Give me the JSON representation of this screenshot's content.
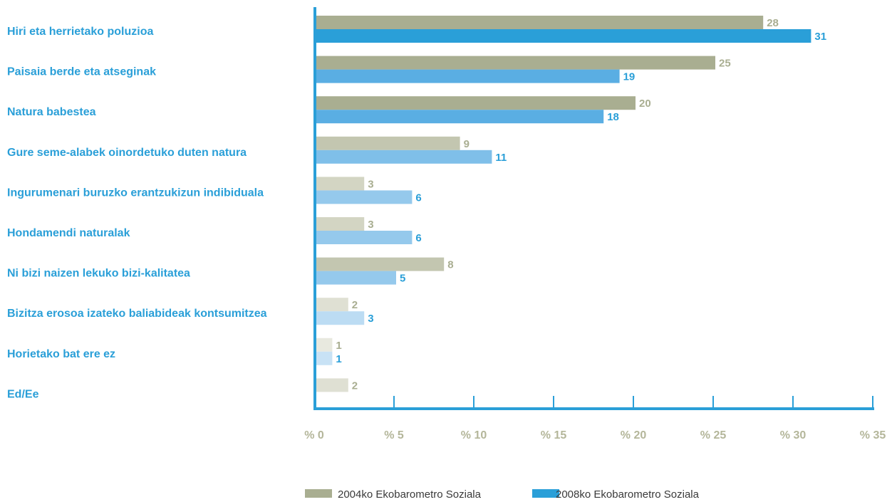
{
  "chart_data": {
    "type": "bar",
    "orientation": "horizontal",
    "categories": [
      "Hiri eta herrietako poluzioa",
      "Paisaia berde eta atseginak",
      "Natura babestea",
      "Gure seme-alabek oinordetuko duten natura",
      "Ingurumenari buruzko erantzukizun indibiduala",
      "Hondamendi naturalak",
      "Ni bizi naizen lekuko bizi-kalitatea",
      "Bizitza erosoa izateko baliabideak kontsumitzea",
      "Horietako bat ere ez",
      "Ed/Ee"
    ],
    "series": [
      {
        "name": "2004ko Ekobarometro Soziala",
        "values": [
          28,
          25,
          20,
          9,
          3,
          3,
          8,
          2,
          1,
          2
        ],
        "color": "#a9ae91",
        "label_color": "#a9ae91"
      },
      {
        "name": "2008ko Ekobarometro Soziala",
        "values": [
          31,
          19,
          18,
          11,
          6,
          6,
          5,
          3,
          1,
          null
        ],
        "color": "#2a9fd8",
        "label_color": "#2a9fd8"
      }
    ],
    "bar_shades_2004": [
      "#a9ae91",
      "#a9ae91",
      "#a9ae91",
      "#c3c6b0",
      "#d3d5c3",
      "#d3d5c3",
      "#c3c6b0",
      "#dfe0d3",
      "#e8e9df",
      "#dfe0d3"
    ],
    "bar_shades_2008": [
      "#2a9fd8",
      "#5aaee3",
      "#5aaee3",
      "#7fbfe9",
      "#95c9ec",
      "#95c9ec",
      "#95c9ec",
      "#bcdcf3",
      "#c8e2f5",
      null
    ],
    "x_ticks": [
      "% 0",
      "% 5",
      "% 10",
      "% 15",
      "% 20",
      "% 25",
      "% 30",
      "% 35"
    ],
    "xlim": [
      0,
      35
    ],
    "axis_color": "#2a9fd8",
    "grid": false,
    "legend_position": "bottom-center",
    "title": "",
    "xlabel": "",
    "ylabel": ""
  }
}
